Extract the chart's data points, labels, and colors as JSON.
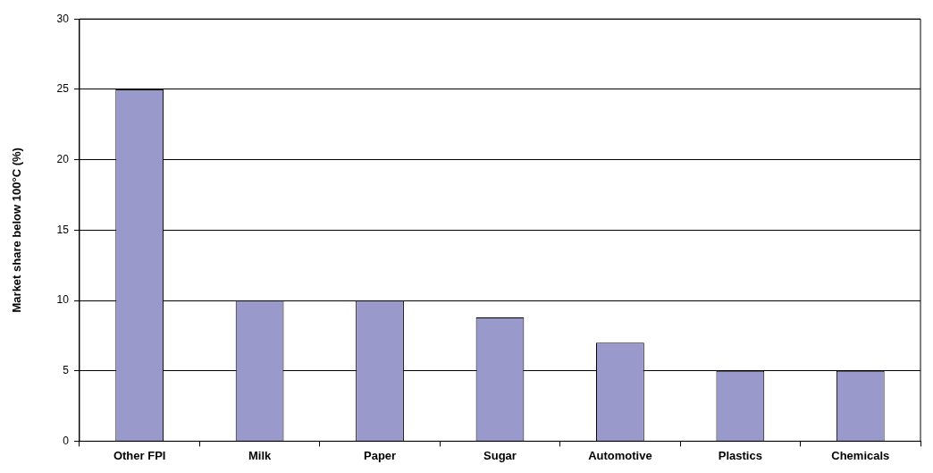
{
  "chart_data": {
    "type": "bar",
    "ylabel": "Market share below 100°C (%)",
    "categories": [
      "Other FPI",
      "Milk",
      "Paper",
      "Sugar",
      "Automotive",
      "Plastics",
      "Chemicals"
    ],
    "values": [
      25,
      10,
      10,
      8.8,
      7,
      5,
      5
    ],
    "color": "#9999cc",
    "ylim": [
      0,
      30
    ],
    "yticks": [
      0,
      5,
      10,
      15,
      20,
      25,
      30
    ],
    "grid": "y",
    "legend": false
  }
}
